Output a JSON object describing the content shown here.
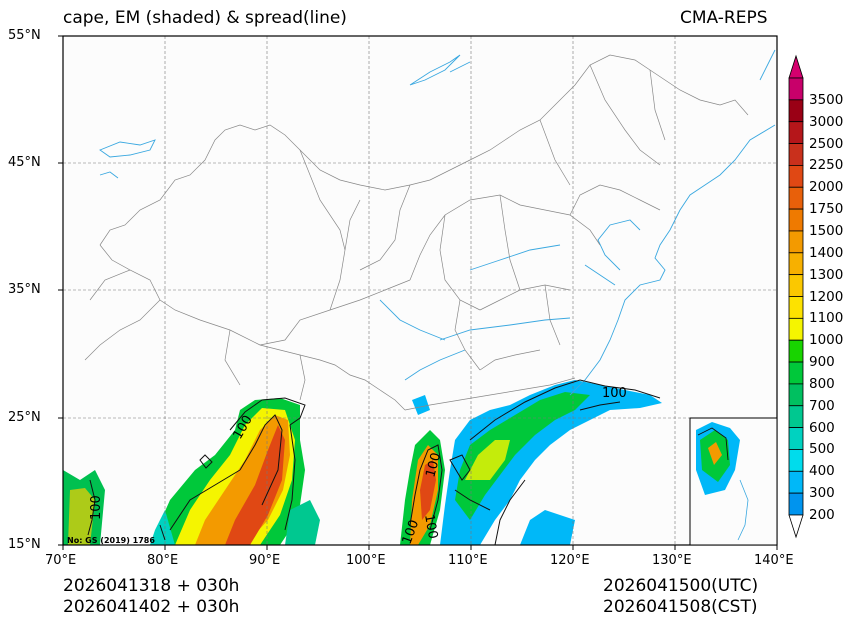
{
  "header": {
    "title": "cape, EM (shaded) & spread(line)",
    "model": "CMA-REPS"
  },
  "map": {
    "lat_labels": [
      "55°N",
      "45°N",
      "35°N",
      "25°N",
      "15°N"
    ],
    "lon_labels": [
      "70°E",
      "80°E",
      "90°E",
      "100°E",
      "110°E",
      "120°E",
      "130°E",
      "140°E"
    ],
    "contour_labels": [
      "100",
      "100",
      "100",
      "100",
      "100",
      "100"
    ],
    "map_credit": "No: GS (2019) 1786"
  },
  "colorbar": {
    "levels": [
      "3500",
      "3000",
      "2500",
      "2250",
      "2000",
      "1750",
      "1500",
      "1400",
      "1300",
      "1200",
      "1100",
      "1000",
      "900",
      "800",
      "700",
      "600",
      "500",
      "400",
      "300",
      "200"
    ],
    "colors": [
      "#c8006a",
      "#9a0015",
      "#b5161a",
      "#c9301c",
      "#e04814",
      "#e8600a",
      "#ef7a00",
      "#f39a00",
      "#f7b000",
      "#fbc800",
      "#fde200",
      "#f5f500",
      "#18d400",
      "#00c83a",
      "#00c060",
      "#00c890",
      "#00d2c0",
      "#00dcec",
      "#00b8f8",
      "#0094ee"
    ],
    "top_color": "#d4006e"
  },
  "footer": {
    "init_utc": "2026041318  +  030h",
    "init_cst": "2026041402  +  030h",
    "valid_utc": "2026041500(UTC)",
    "valid_cst": "2026041508(CST)"
  }
}
